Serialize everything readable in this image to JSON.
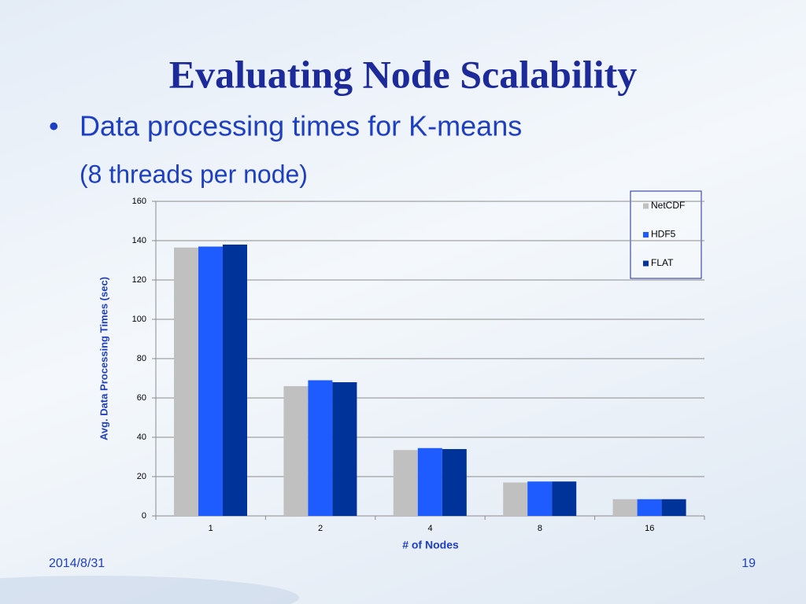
{
  "slide": {
    "title": "Evaluating Node Scalability",
    "bullet": "Data processing times for K-means",
    "sub_bullet": "(8 threads per node)",
    "date": "2014/8/31",
    "page": "19"
  },
  "chart_data": {
    "type": "bar",
    "x_label": "# of Nodes",
    "y_label": "Avg. Data Processing Times (sec)",
    "categories": [
      "1",
      "2",
      "4",
      "8",
      "16"
    ],
    "series": [
      {
        "name": "NetCDF",
        "color": "#c0c0c0",
        "values": [
          136.5,
          66,
          33.5,
          17,
          8.5
        ]
      },
      {
        "name": "HDF5",
        "color": "#1e5cff",
        "values": [
          137,
          69,
          34.5,
          17.5,
          8.5
        ]
      },
      {
        "name": "FLAT",
        "color": "#003399",
        "values": [
          138,
          68,
          34,
          17.5,
          8.5
        ]
      }
    ],
    "ylim": [
      0,
      160
    ],
    "yticks": [
      0,
      20,
      40,
      60,
      80,
      100,
      120,
      140,
      160
    ],
    "grid": true,
    "legend": "top-right"
  }
}
